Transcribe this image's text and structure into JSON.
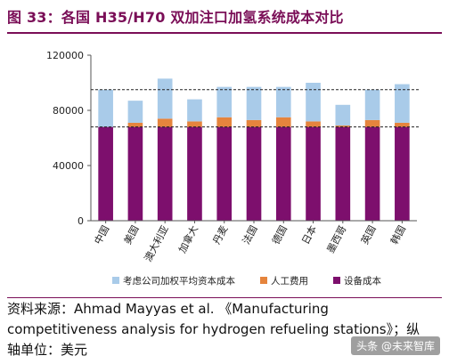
{
  "figure": {
    "title": "图 33：各国 H35/H70 双加注口加氢系统成本对比",
    "source_line1": "资料来源：Ahmad Mayyas et al. 《Manufacturing",
    "source_line2": "competitiveness analysis for hydrogen refueling stations》；纵",
    "source_line3": "轴单位：美元",
    "watermark": "头条 @未来智库"
  },
  "colors": {
    "title": "#7a0e57",
    "capital_cost": "#a9cbe9",
    "labor_cost": "#e5843d",
    "equipment_cost": "#7d0f6d"
  },
  "chart_data": {
    "type": "bar",
    "stacked": true,
    "title": "",
    "xlabel": "",
    "ylabel": "",
    "ylim": [
      0,
      120000
    ],
    "yticks": [
      0,
      40000,
      80000,
      120000
    ],
    "ytick_labels": [
      "0",
      "40000",
      "80000",
      "120000"
    ],
    "grid": false,
    "legend_position": "bottom",
    "categories": [
      "中国",
      "美国",
      "澳大利亚",
      "加拿大",
      "丹麦",
      "法国",
      "德国",
      "日本",
      "墨西哥",
      "英国",
      "韩国"
    ],
    "series": [
      {
        "name": "设备成本",
        "color_key": "equipment_cost",
        "values": [
          68000,
          68000,
          68000,
          68000,
          68000,
          68000,
          68000,
          68000,
          68000,
          68000,
          68000
        ]
      },
      {
        "name": "人工费用",
        "color_key": "labor_cost",
        "values": [
          0,
          3000,
          6000,
          4000,
          7000,
          5000,
          7000,
          4000,
          1000,
          5000,
          3000
        ]
      },
      {
        "name": "考虑公司加权平均资本成本",
        "color_key": "capital_cost",
        "values": [
          27000,
          16000,
          29000,
          16000,
          22000,
          24000,
          22000,
          28000,
          15000,
          22000,
          28000
        ]
      }
    ],
    "reference_lines": [
      95000,
      68000
    ],
    "legend_order": [
      "考虑公司加权平均资本成本",
      "人工费用",
      "设备成本"
    ]
  }
}
